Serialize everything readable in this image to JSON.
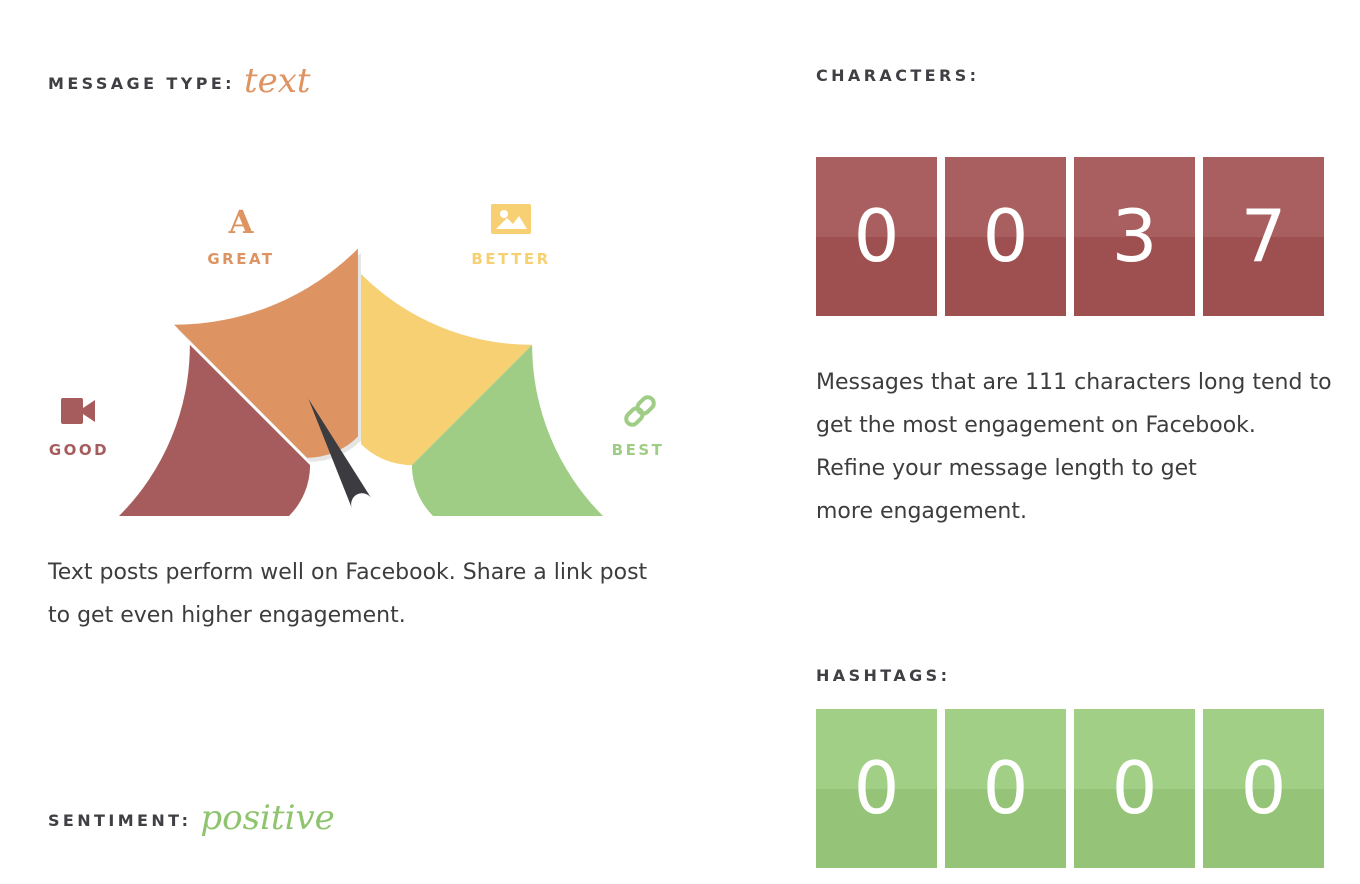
{
  "colors": {
    "good": "#a65c5c",
    "great": "#de9462",
    "better": "#f6d073",
    "best": "#a0cd85",
    "needle": "#3c3b40",
    "text": "#3d3d3f",
    "char_digit_top": "#a95f5f",
    "char_digit_bottom": "#9e5050",
    "hash_digit_top": "#a2cf86",
    "hash_digit_bottom": "#95c479"
  },
  "message_type": {
    "label": "MESSAGE TYPE:",
    "value": "text",
    "gauge": {
      "segments": [
        {
          "label": "GOOD",
          "icon": "video-camera-icon"
        },
        {
          "label": "GREAT",
          "icon": "font-letter-icon"
        },
        {
          "label": "BETTER",
          "icon": "image-icon"
        },
        {
          "label": "BEST",
          "icon": "link-icon"
        }
      ],
      "selected": "GREAT",
      "needle_level": 0.35
    },
    "description": "Text posts perform well on Facebook. Share a link post to get even higher engagement."
  },
  "characters": {
    "label": "CHARACTERS:",
    "digits": [
      "0",
      "0",
      "3",
      "7"
    ],
    "description_lines": [
      "Messages that are 111 characters long tend to",
      "get the most engagement on Facebook.",
      "Refine your message length to get",
      "more engagement."
    ]
  },
  "hashtags": {
    "label": "HASHTAGS:",
    "digits": [
      "0",
      "0",
      "0",
      "0"
    ]
  },
  "sentiment": {
    "label": "SENTIMENT:",
    "value": "positive"
  }
}
